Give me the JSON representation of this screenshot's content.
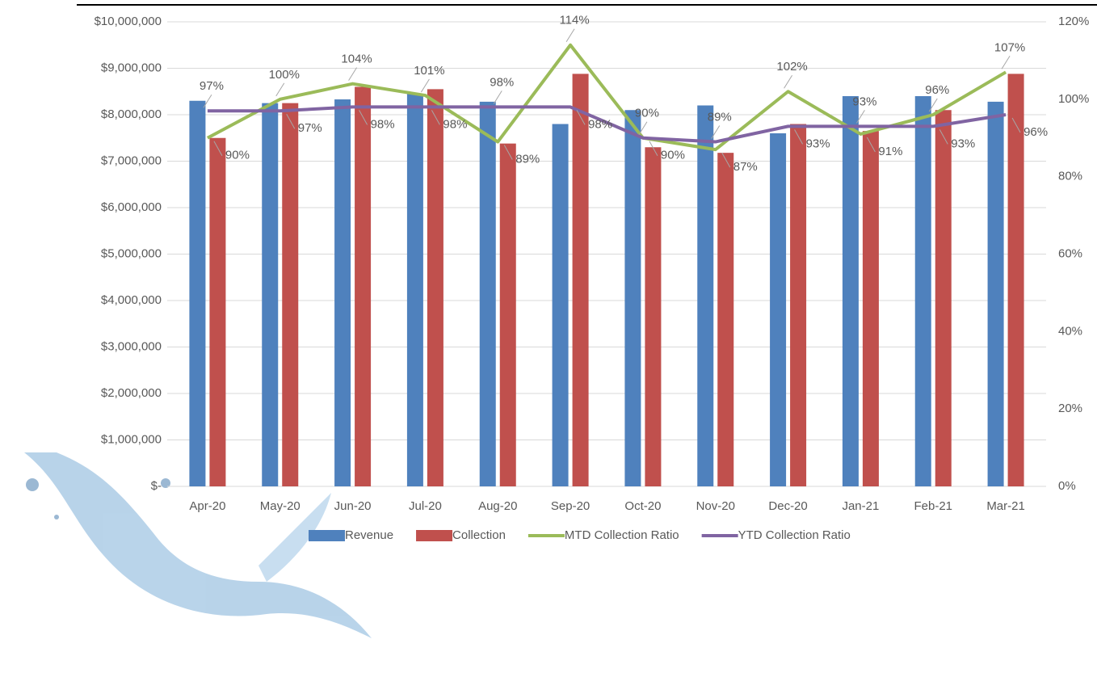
{
  "chart_data": {
    "type": "bar-line",
    "categories": [
      "Apr-20",
      "May-20",
      "Jun-20",
      "Jul-20",
      "Aug-20",
      "Sep-20",
      "Oct-20",
      "Nov-20",
      "Dec-20",
      "Jan-21",
      "Feb-21",
      "Mar-21"
    ],
    "series": [
      {
        "name": "Revenue",
        "type": "bar",
        "color": "#4f81bd",
        "values": [
          8300000,
          8250000,
          8330000,
          8450000,
          8280000,
          7800000,
          8100000,
          8200000,
          7600000,
          8400000,
          8400000,
          8280000
        ]
      },
      {
        "name": "Collection",
        "type": "bar",
        "color": "#c0504d",
        "values": [
          7500000,
          8250000,
          8600000,
          8550000,
          7380000,
          8880000,
          7300000,
          7180000,
          7800000,
          7650000,
          8100000,
          8880000
        ]
      },
      {
        "name": "MTD Collection Ratio",
        "type": "line",
        "axis": "y2",
        "color": "#9bbb59",
        "values": [
          90,
          100,
          104,
          101,
          89,
          114,
          90,
          87,
          102,
          91,
          96,
          107
        ],
        "value_labels": [
          "90%",
          "100%",
          "104%",
          "101%",
          "89%",
          "114%",
          "90%",
          "87%",
          "102%",
          "91%",
          "96%",
          "107%"
        ]
      },
      {
        "name": "YTD Collection Ratio",
        "type": "line",
        "axis": "y2",
        "color": "#8064a2",
        "values": [
          97,
          97,
          98,
          98,
          98,
          98,
          90,
          89,
          93,
          93,
          93,
          96
        ],
        "value_labels": [
          "97%",
          "97%",
          "98%",
          "98%",
          "98%",
          "98%",
          "90%",
          "89%",
          "93%",
          "93%",
          "93%",
          "96%"
        ]
      }
    ],
    "ylim": [
      0,
      10000000
    ],
    "yticks": [
      {
        "value": 0,
        "label": "$-"
      },
      {
        "value": 1000000,
        "label": "$1,000,000"
      },
      {
        "value": 2000000,
        "label": "$2,000,000"
      },
      {
        "value": 3000000,
        "label": "$3,000,000"
      },
      {
        "value": 4000000,
        "label": "$4,000,000"
      },
      {
        "value": 5000000,
        "label": "$5,000,000"
      },
      {
        "value": 6000000,
        "label": "$6,000,000"
      },
      {
        "value": 7000000,
        "label": "$7,000,000"
      },
      {
        "value": 8000000,
        "label": "$8,000,000"
      },
      {
        "value": 9000000,
        "label": "$9,000,000"
      },
      {
        "value": 10000000,
        "label": "$10,000,000"
      }
    ],
    "y2lim": [
      0,
      120
    ],
    "y2ticks": [
      {
        "value": 0,
        "label": "0%"
      },
      {
        "value": 20,
        "label": "20%"
      },
      {
        "value": 40,
        "label": "40%"
      },
      {
        "value": 60,
        "label": "60%"
      },
      {
        "value": 80,
        "label": "80%"
      },
      {
        "value": 100,
        "label": "100%"
      },
      {
        "value": 120,
        "label": "120%"
      }
    ],
    "grid": true,
    "legend": "bottom"
  }
}
